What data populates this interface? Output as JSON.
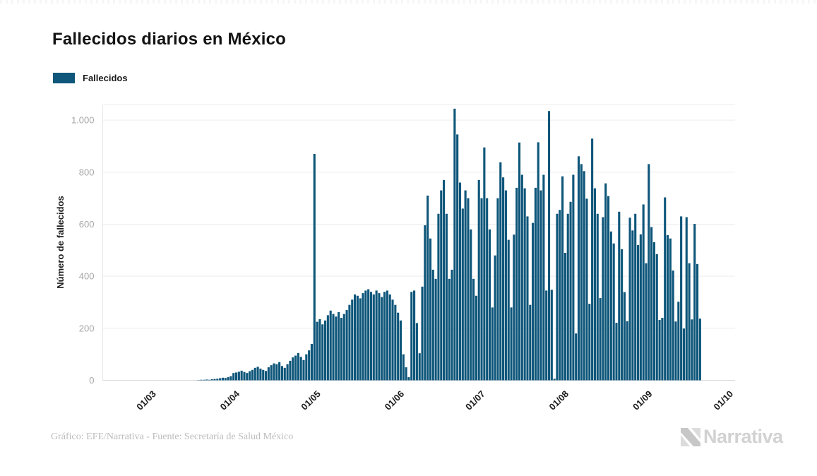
{
  "header": {
    "title": "Fallecidos diarios en México"
  },
  "legend": {
    "items": [
      {
        "label": "Fallecidos",
        "color": "#0e567a"
      }
    ]
  },
  "chart_data": {
    "type": "bar",
    "title": "Fallecidos diarios en México",
    "series_name": "Fallecidos",
    "bar_color": "#0e567a",
    "ylabel": "Número de fallecidos",
    "xlabel": "",
    "grid": "horizontal",
    "legend_position": "top-left",
    "ylim": [
      0,
      1060
    ],
    "y_ticks": [
      {
        "value": 0,
        "label": "0"
      },
      {
        "value": 200,
        "label": "200"
      },
      {
        "value": 400,
        "label": "400"
      },
      {
        "value": 600,
        "label": "600"
      },
      {
        "value": 800,
        "label": "800"
      },
      {
        "value": 1000,
        "label": "1.000"
      }
    ],
    "x_start_date": "21/02/2020",
    "x_tick_labels": [
      "01/03",
      "01/04",
      "01/05",
      "01/06",
      "01/07",
      "01/08",
      "01/09",
      "01/10"
    ],
    "x_tick_indices": [
      9,
      40,
      70,
      101,
      131,
      162,
      193,
      223
    ],
    "values": [
      0,
      0,
      0,
      0,
      0,
      0,
      0,
      0,
      0,
      0,
      0,
      0,
      0,
      0,
      0,
      0,
      0,
      0,
      0,
      0,
      0,
      0,
      0,
      0,
      0,
      0,
      1,
      2,
      2,
      3,
      2,
      4,
      5,
      6,
      8,
      10,
      9,
      12,
      16,
      28,
      30,
      33,
      37,
      32,
      28,
      35,
      40,
      48,
      52,
      45,
      40,
      36,
      50,
      58,
      65,
      62,
      70,
      55,
      48,
      62,
      75,
      88,
      95,
      105,
      90,
      78,
      100,
      115,
      140,
      870,
      225,
      235,
      215,
      230,
      250,
      268,
      255,
      245,
      262,
      240,
      255,
      270,
      290,
      310,
      330,
      325,
      315,
      335,
      345,
      350,
      340,
      330,
      345,
      335,
      320,
      340,
      345,
      330,
      310,
      290,
      260,
      230,
      100,
      50,
      12,
      340,
      345,
      220,
      104,
      360,
      596,
      710,
      545,
      425,
      390,
      640,
      730,
      770,
      640,
      390,
      425,
      1044,
      945,
      760,
      660,
      730,
      700,
      580,
      390,
      325,
      770,
      700,
      895,
      700,
      580,
      280,
      480,
      700,
      838,
      780,
      730,
      540,
      280,
      560,
      740,
      914,
      790,
      738,
      630,
      290,
      605,
      740,
      915,
      730,
      790,
      345,
      1035,
      348,
      6,
      640,
      655,
      784,
      490,
      640,
      686,
      790,
      180,
      861,
      831,
      804,
      698,
      294,
      929,
      738,
      640,
      316,
      627,
      757,
      708,
      572,
      526,
      221,
      648,
      504,
      339,
      227,
      625,
      576,
      640,
      520,
      561,
      676,
      450,
      831,
      589,
      531,
      485,
      232,
      240,
      703,
      558,
      545,
      422,
      226,
      302,
      630,
      199,
      627,
      450,
      234,
      601,
      447,
      237
    ]
  },
  "footer": {
    "credit": "Gráfico: EFE/Narrativa - Fuente: Secretaría de Salud México",
    "brand": "Narrativa"
  }
}
